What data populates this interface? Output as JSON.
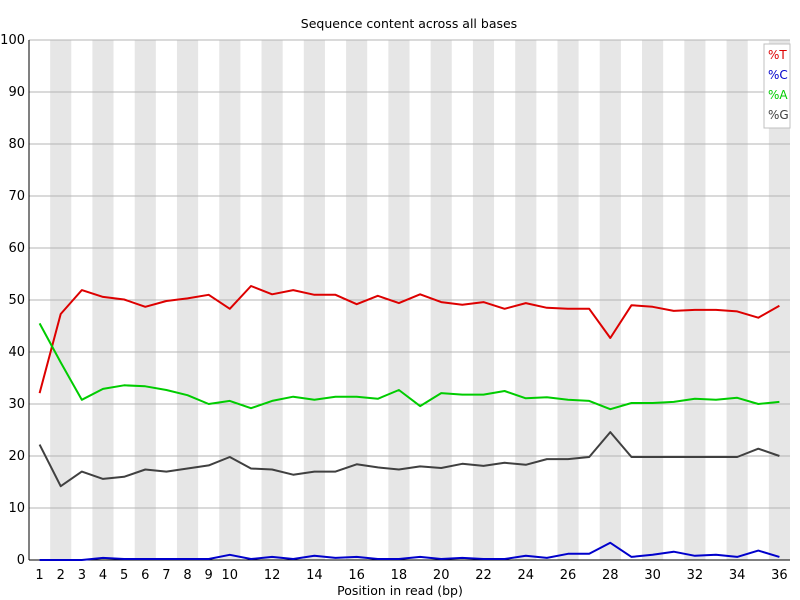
{
  "chart_data": {
    "type": "line",
    "title": "Sequence content across all bases",
    "xlabel": "Position in read (bp)",
    "ylabel": "",
    "ylim": [
      0,
      100
    ],
    "yticks": [
      0,
      10,
      20,
      30,
      40,
      50,
      60,
      70,
      80,
      90,
      100
    ],
    "x": [
      1,
      2,
      3,
      4,
      5,
      6,
      7,
      8,
      9,
      10,
      11,
      12,
      13,
      14,
      15,
      16,
      17,
      18,
      19,
      20,
      21,
      22,
      23,
      24,
      25,
      26,
      27,
      28,
      29,
      30,
      31,
      32,
      33,
      34,
      35,
      36
    ],
    "x_tick_labels": [
      "1",
      "2",
      "3",
      "4",
      "5",
      "6",
      "7",
      "8",
      "9",
      "10",
      "12",
      "14",
      "16",
      "18",
      "20",
      "22",
      "24",
      "26",
      "28",
      "30",
      "32",
      "34",
      "36"
    ],
    "grid": "horizontal lines with alternating vertical bands",
    "legend_position": "top-right",
    "series": [
      {
        "name": "%T",
        "color": "#dd0000",
        "values": [
          32.1,
          47.3,
          51.9,
          50.6,
          50.1,
          48.7,
          49.8,
          50.3,
          51.0,
          48.3,
          52.7,
          51.1,
          51.9,
          51.0,
          51.0,
          49.2,
          50.8,
          49.4,
          51.1,
          49.6,
          49.1,
          49.6,
          48.3,
          49.4,
          48.5,
          48.3,
          48.3,
          42.7,
          49.0,
          48.7,
          47.9,
          48.1,
          48.1,
          47.8,
          46.6,
          48.9
        ]
      },
      {
        "name": "%C",
        "color": "#0000cc",
        "values": [
          0.0,
          0.0,
          0.0,
          0.4,
          0.2,
          0.2,
          0.2,
          0.2,
          0.2,
          1.0,
          0.2,
          0.6,
          0.2,
          0.8,
          0.4,
          0.6,
          0.2,
          0.2,
          0.6,
          0.2,
          0.4,
          0.2,
          0.2,
          0.8,
          0.4,
          1.2,
          1.2,
          3.3,
          0.6,
          1.0,
          1.6,
          0.8,
          1.0,
          0.6,
          1.8,
          0.6
        ]
      },
      {
        "name": "%A",
        "color": "#00cc00",
        "values": [
          45.5,
          38.0,
          30.8,
          32.9,
          33.6,
          33.4,
          32.7,
          31.7,
          30.0,
          30.6,
          29.2,
          30.6,
          31.4,
          30.8,
          31.4,
          31.4,
          31.0,
          32.7,
          29.6,
          32.1,
          31.8,
          31.8,
          32.5,
          31.1,
          31.3,
          30.8,
          30.6,
          29.0,
          30.2,
          30.2,
          30.4,
          31.0,
          30.8,
          31.2,
          30.0,
          30.4
        ]
      },
      {
        "name": "%G",
        "color": "#404040",
        "values": [
          22.2,
          14.2,
          17.0,
          15.6,
          16.0,
          17.4,
          17.0,
          17.6,
          18.2,
          19.8,
          17.6,
          17.4,
          16.4,
          17.0,
          17.0,
          18.4,
          17.8,
          17.4,
          18.0,
          17.7,
          18.5,
          18.1,
          18.7,
          18.3,
          19.4,
          19.4,
          19.8,
          24.6,
          19.8,
          19.8,
          19.8,
          19.8,
          19.8,
          19.8,
          21.4,
          20.0
        ]
      }
    ]
  }
}
